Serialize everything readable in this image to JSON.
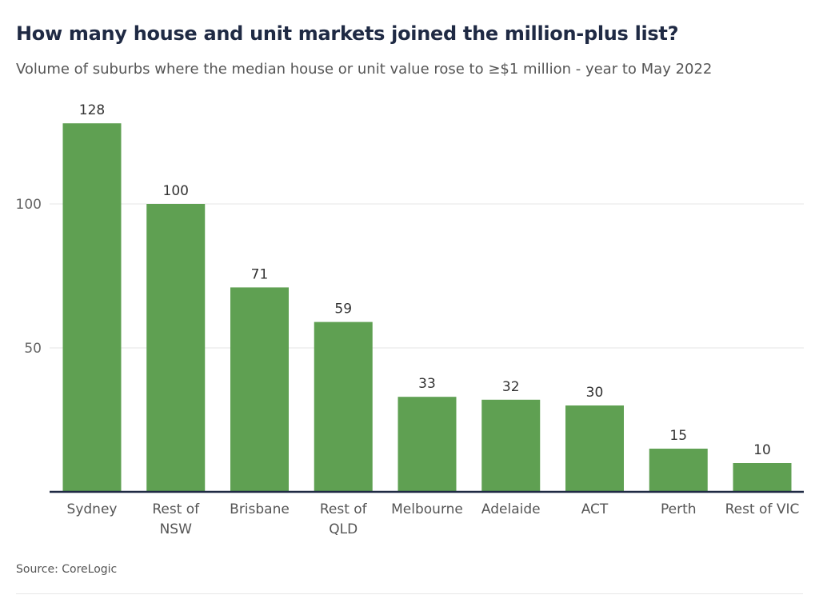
{
  "chart_data": {
    "type": "bar",
    "title": "How many house and unit markets joined the million-plus list?",
    "subtitle": "Volume of suburbs where the median house or unit value rose to ≥$1 million - year to May 2022",
    "categories": [
      [
        "Sydney"
      ],
      [
        "Rest of",
        "NSW"
      ],
      [
        "Brisbane"
      ],
      [
        "Rest of",
        "QLD"
      ],
      [
        "Melbourne"
      ],
      [
        "Adelaide"
      ],
      [
        "ACT"
      ],
      [
        "Perth"
      ],
      [
        "Rest of VIC"
      ]
    ],
    "values": [
      128,
      100,
      71,
      59,
      33,
      32,
      30,
      15,
      10
    ],
    "yticks": [
      50,
      100
    ],
    "ylim": [
      0,
      128
    ],
    "grid": true,
    "bar_color": "#5fa052",
    "baseline_color": "#1f2a44",
    "source": "Source: CoreLogic"
  }
}
